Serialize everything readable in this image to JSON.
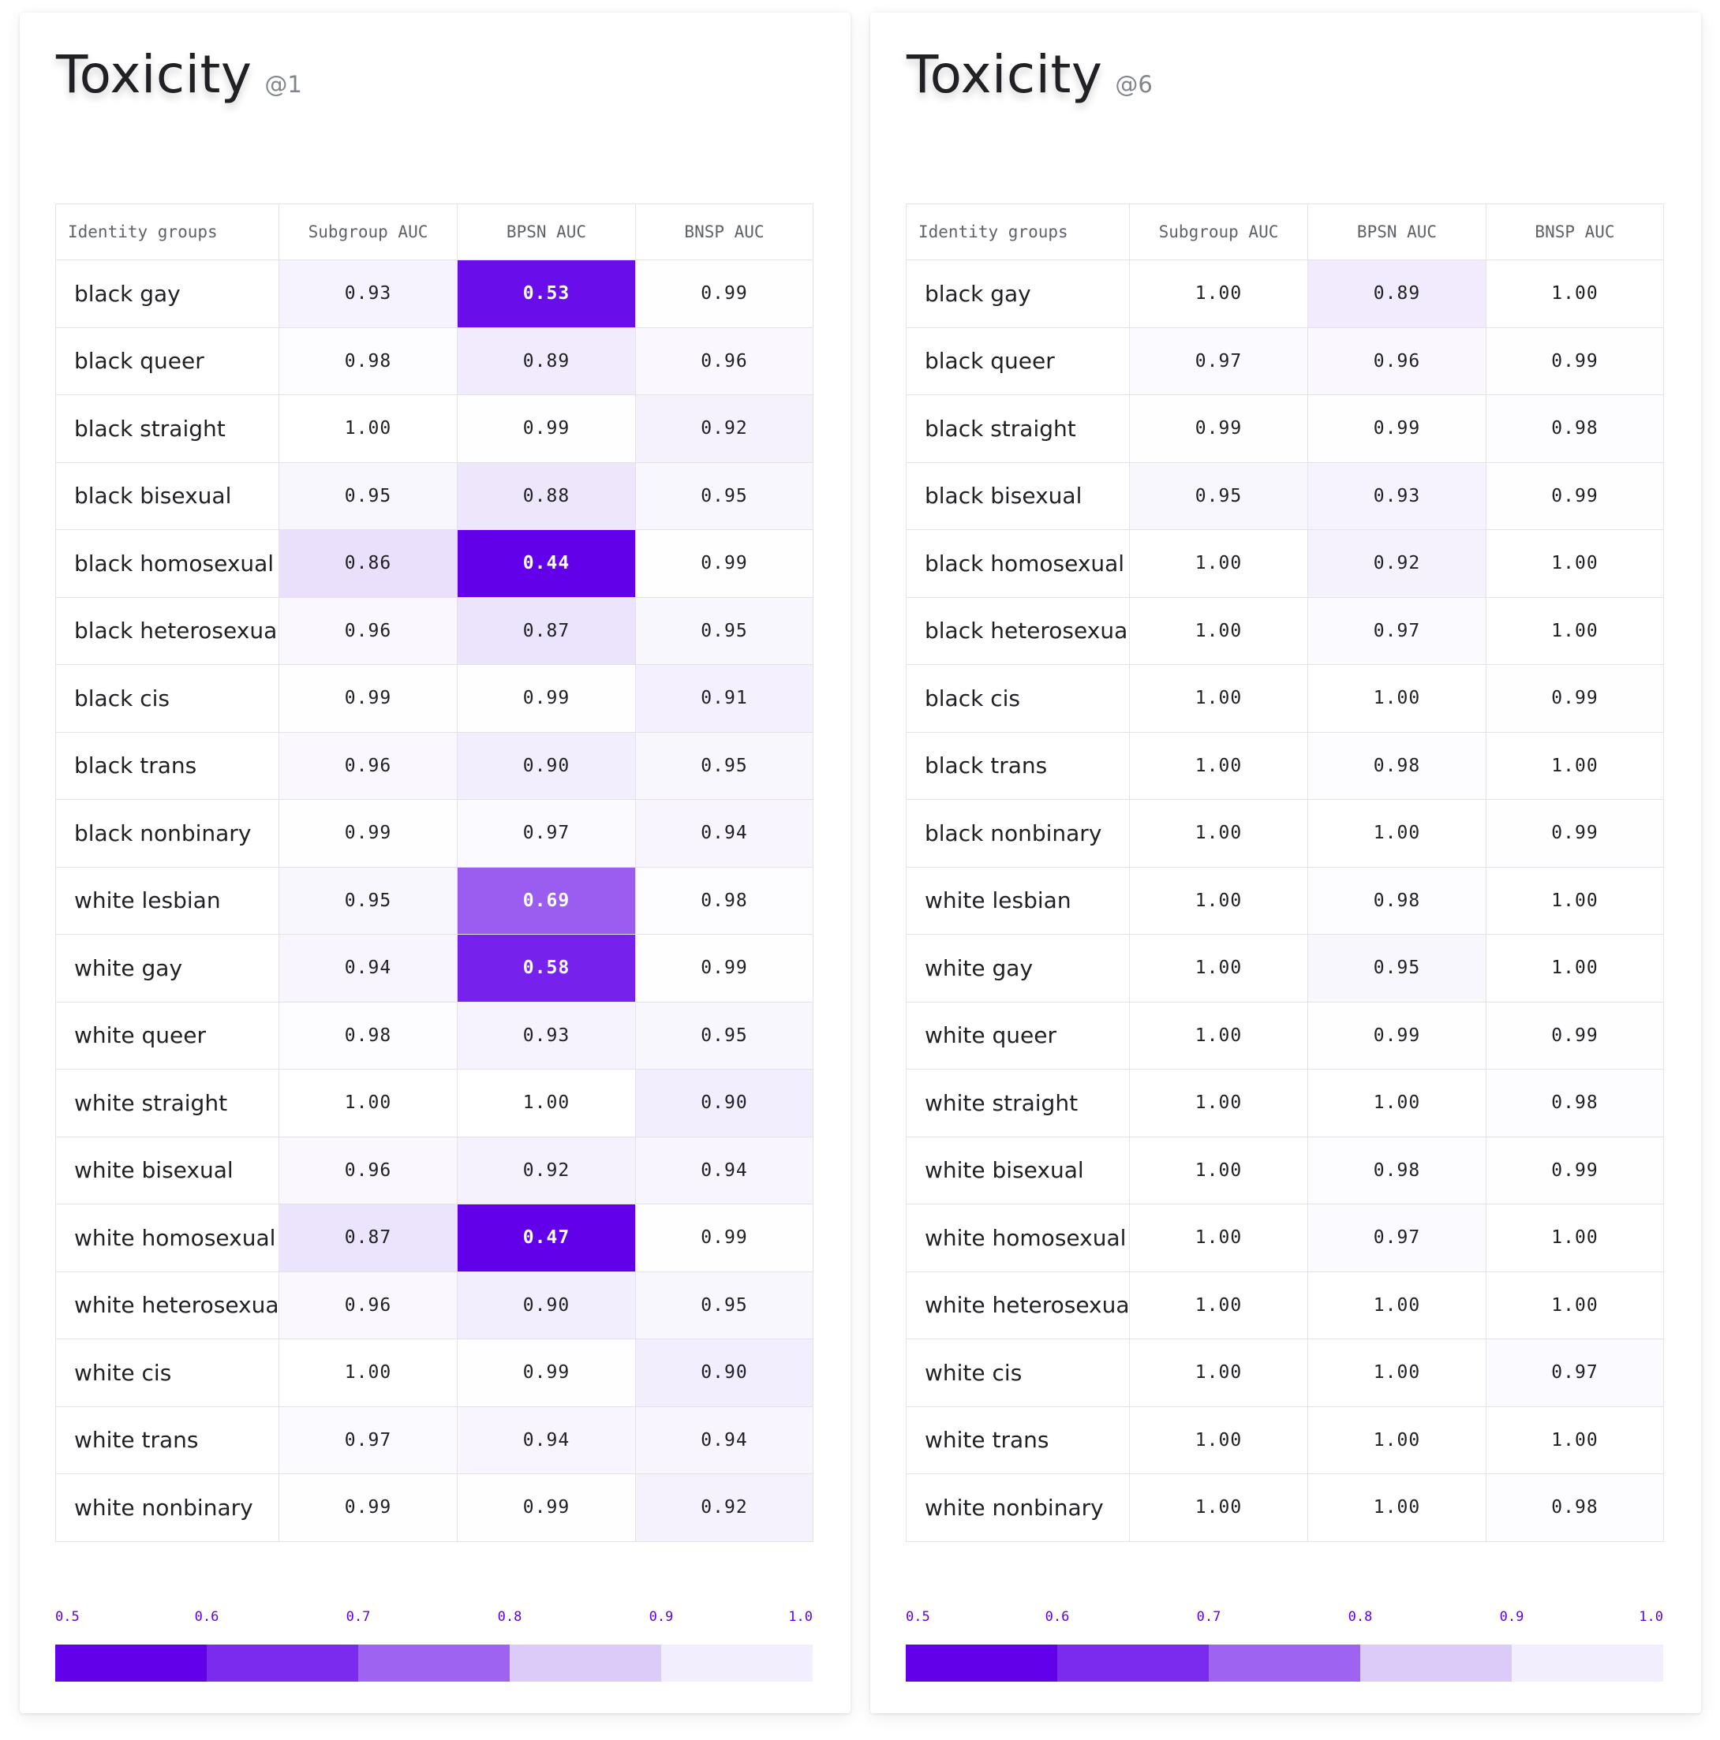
{
  "chart_data": [
    {
      "type": "heatmap",
      "title": "Toxicity",
      "subtitle": "@1",
      "columns": [
        "Identity groups",
        "Subgroup AUC",
        "BPSN AUC",
        "BNSP AUC"
      ],
      "rows": [
        {
          "label": "black gay",
          "values": [
            "0.93",
            "0.53",
            "0.99"
          ]
        },
        {
          "label": "black queer",
          "values": [
            "0.98",
            "0.89",
            "0.96"
          ]
        },
        {
          "label": "black straight",
          "values": [
            "1.00",
            "0.99",
            "0.92"
          ]
        },
        {
          "label": "black bisexual",
          "values": [
            "0.95",
            "0.88",
            "0.95"
          ]
        },
        {
          "label": "black homosexual",
          "values": [
            "0.86",
            "0.44",
            "0.99"
          ]
        },
        {
          "label": "black heterosexual",
          "values": [
            "0.96",
            "0.87",
            "0.95"
          ]
        },
        {
          "label": "black cis",
          "values": [
            "0.99",
            "0.99",
            "0.91"
          ]
        },
        {
          "label": "black trans",
          "values": [
            "0.96",
            "0.90",
            "0.95"
          ]
        },
        {
          "label": "black nonbinary",
          "values": [
            "0.99",
            "0.97",
            "0.94"
          ]
        },
        {
          "label": "white lesbian",
          "values": [
            "0.95",
            "0.69",
            "0.98"
          ]
        },
        {
          "label": "white gay",
          "values": [
            "0.94",
            "0.58",
            "0.99"
          ]
        },
        {
          "label": "white queer",
          "values": [
            "0.98",
            "0.93",
            "0.95"
          ]
        },
        {
          "label": "white straight",
          "values": [
            "1.00",
            "1.00",
            "0.90"
          ]
        },
        {
          "label": "white bisexual",
          "values": [
            "0.96",
            "0.92",
            "0.94"
          ]
        },
        {
          "label": "white homosexual",
          "values": [
            "0.87",
            "0.47",
            "0.99"
          ]
        },
        {
          "label": "white heterosexual",
          "values": [
            "0.96",
            "0.90",
            "0.95"
          ]
        },
        {
          "label": "white cis",
          "values": [
            "1.00",
            "0.99",
            "0.90"
          ]
        },
        {
          "label": "white trans",
          "values": [
            "0.97",
            "0.94",
            "0.94"
          ]
        },
        {
          "label": "white nonbinary",
          "values": [
            "0.99",
            "0.99",
            "0.92"
          ]
        }
      ]
    },
    {
      "type": "heatmap",
      "title": "Toxicity",
      "subtitle": "@6",
      "columns": [
        "Identity groups",
        "Subgroup AUC",
        "BPSN AUC",
        "BNSP AUC"
      ],
      "rows": [
        {
          "label": "black gay",
          "values": [
            "1.00",
            "0.89",
            "1.00"
          ]
        },
        {
          "label": "black queer",
          "values": [
            "0.97",
            "0.96",
            "0.99"
          ]
        },
        {
          "label": "black straight",
          "values": [
            "0.99",
            "0.99",
            "0.98"
          ]
        },
        {
          "label": "black bisexual",
          "values": [
            "0.95",
            "0.93",
            "0.99"
          ]
        },
        {
          "label": "black homosexual",
          "values": [
            "1.00",
            "0.92",
            "1.00"
          ]
        },
        {
          "label": "black heterosexual",
          "values": [
            "1.00",
            "0.97",
            "1.00"
          ]
        },
        {
          "label": "black cis",
          "values": [
            "1.00",
            "1.00",
            "0.99"
          ]
        },
        {
          "label": "black trans",
          "values": [
            "1.00",
            "0.98",
            "1.00"
          ]
        },
        {
          "label": "black nonbinary",
          "values": [
            "1.00",
            "1.00",
            "0.99"
          ]
        },
        {
          "label": "white lesbian",
          "values": [
            "1.00",
            "0.98",
            "1.00"
          ]
        },
        {
          "label": "white gay",
          "values": [
            "1.00",
            "0.95",
            "1.00"
          ]
        },
        {
          "label": "white queer",
          "values": [
            "1.00",
            "0.99",
            "0.99"
          ]
        },
        {
          "label": "white straight",
          "values": [
            "1.00",
            "1.00",
            "0.98"
          ]
        },
        {
          "label": "white bisexual",
          "values": [
            "1.00",
            "0.98",
            "0.99"
          ]
        },
        {
          "label": "white homosexual",
          "values": [
            "1.00",
            "0.97",
            "1.00"
          ]
        },
        {
          "label": "white heterosexual",
          "values": [
            "1.00",
            "1.00",
            "1.00"
          ]
        },
        {
          "label": "white cis",
          "values": [
            "1.00",
            "1.00",
            "0.97"
          ]
        },
        {
          "label": "white trans",
          "values": [
            "1.00",
            "1.00",
            "1.00"
          ]
        },
        {
          "label": "white nonbinary",
          "values": [
            "1.00",
            "1.00",
            "0.98"
          ]
        }
      ]
    }
  ],
  "colorscale": {
    "ticks": [
      "0.5",
      "0.6",
      "0.7",
      "0.8",
      "0.9",
      "1.0"
    ],
    "domain": [
      0.5,
      1.0
    ],
    "anchors": [
      "#6200ea",
      "#7b2bed",
      "#9e63f0",
      "#dccbf9",
      "#f3eefd",
      "#ffffff"
    ],
    "tick_color": "#6200ea"
  }
}
